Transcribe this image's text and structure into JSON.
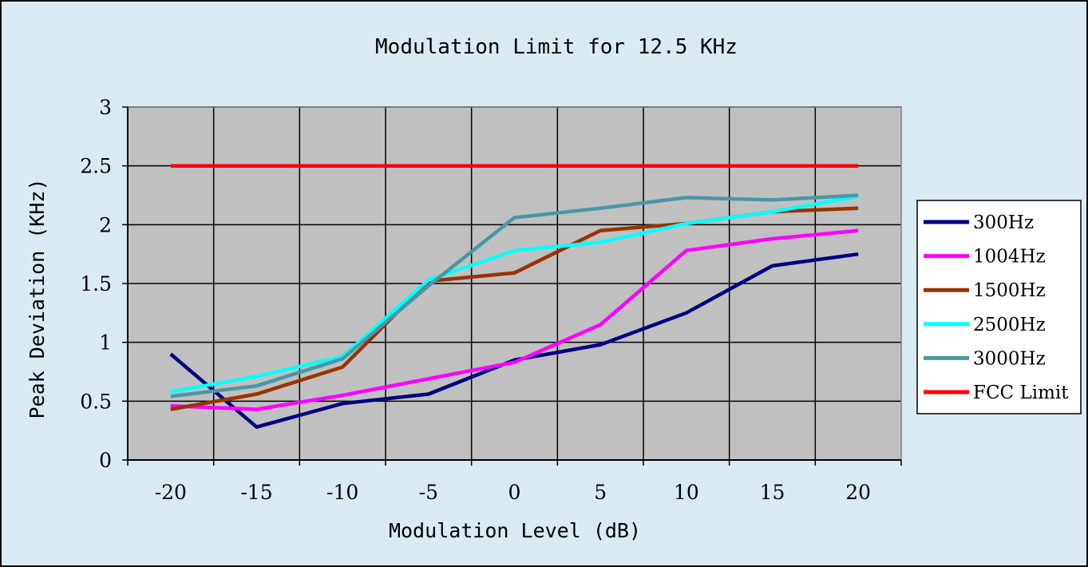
{
  "chart_data": {
    "type": "line",
    "title": "Modulation Limit for 12.5 KHz",
    "xlabel": "Modulation Level (dB)",
    "ylabel": "Peak Deviation (KHz)",
    "x": [
      -20,
      -15,
      -10,
      -5,
      0,
      5,
      10,
      15,
      20
    ],
    "x_tick_labels": [
      "-20",
      "-15",
      "-10",
      "-5",
      "0",
      "5",
      "10",
      "15",
      "20"
    ],
    "y_tick_labels": [
      "0",
      "0.5",
      "1",
      "1.5",
      "2",
      "2.5",
      "3"
    ],
    "xlim": [
      -22.5,
      22.5
    ],
    "ylim": [
      0,
      3
    ],
    "grid": true,
    "legend_position": "right",
    "plot_background": "#c0c0c0",
    "series": [
      {
        "name": "300Hz",
        "color": "#000080",
        "values": [
          0.9,
          0.28,
          0.48,
          0.56,
          0.85,
          0.98,
          1.25,
          1.65,
          1.75
        ]
      },
      {
        "name": "1004Hz",
        "color": "#ff00ff",
        "values": [
          0.46,
          0.43,
          0.55,
          0.69,
          0.83,
          1.15,
          1.78,
          1.88,
          1.95
        ]
      },
      {
        "name": "1500Hz",
        "color": "#993300",
        "values": [
          0.43,
          0.56,
          0.79,
          1.52,
          1.59,
          1.95,
          2.01,
          2.11,
          2.14
        ]
      },
      {
        "name": "2500Hz",
        "color": "#00ffff",
        "values": [
          0.58,
          0.71,
          0.88,
          1.53,
          1.78,
          1.85,
          2.01,
          2.11,
          2.24
        ]
      },
      {
        "name": "3000Hz",
        "color": "#4a97a6",
        "values": [
          0.54,
          0.63,
          0.86,
          1.48,
          2.06,
          2.14,
          2.23,
          2.21,
          2.25
        ]
      },
      {
        "name": "FCC Limit",
        "color": "#ff0000",
        "values": [
          2.5,
          2.5,
          2.5,
          2.5,
          2.5,
          2.5,
          2.5,
          2.5,
          2.5
        ]
      }
    ]
  }
}
